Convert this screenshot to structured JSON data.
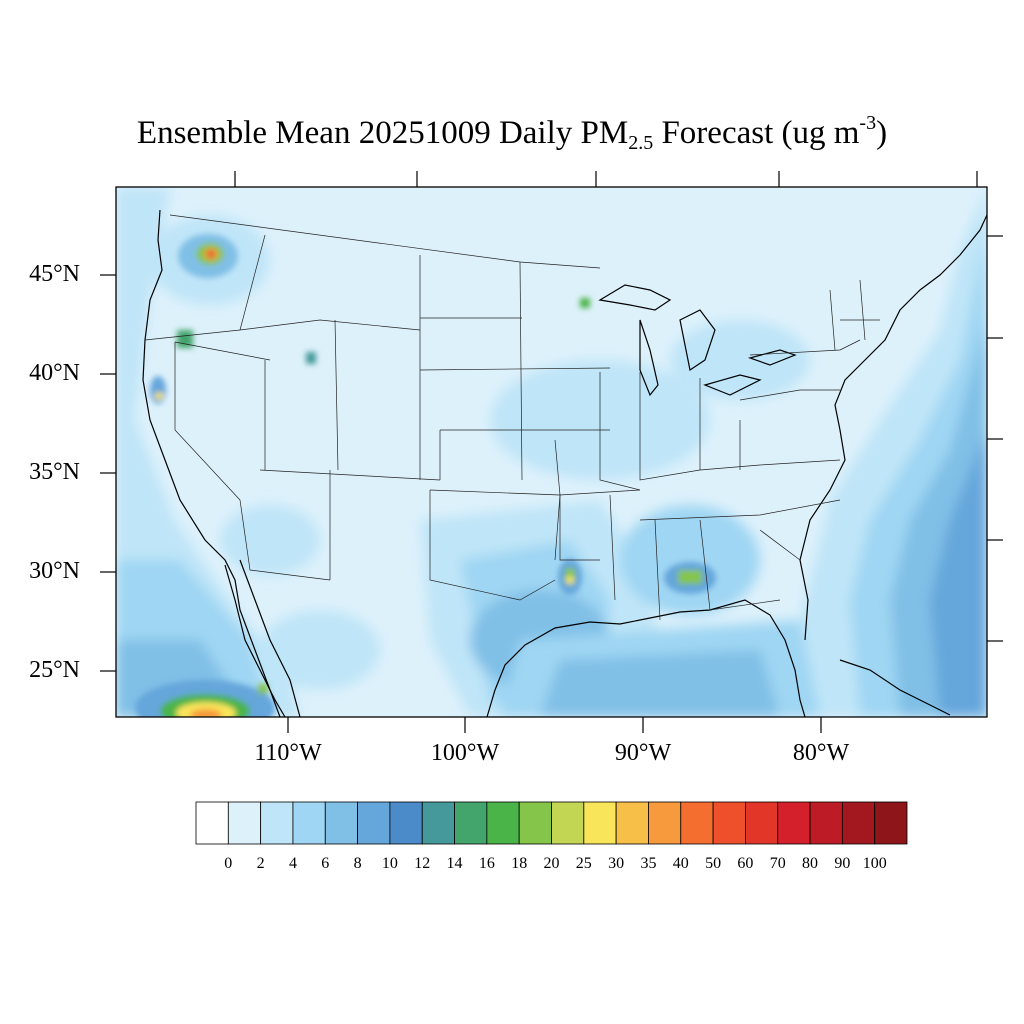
{
  "title": {
    "prefix": "Ensemble Mean 20251009 Daily PM",
    "subscript": "2.5",
    "middle": " Forecast (ug m",
    "superscript": "-3",
    "suffix": ")"
  },
  "lat_labels": [
    "45°N",
    "40°N",
    "35°N",
    "30°N",
    "25°N"
  ],
  "lon_labels": [
    "110°W",
    "100°W",
    "90°W",
    "80°W"
  ],
  "colorbar": {
    "labels": [
      "0",
      "2",
      "4",
      "6",
      "8",
      "10",
      "12",
      "14",
      "16",
      "18",
      "20",
      "25",
      "30",
      "35",
      "40",
      "50",
      "60",
      "70",
      "80",
      "90",
      "100"
    ],
    "colors": [
      "#ffffff",
      "#ddf1fb",
      "#bfe5f8",
      "#9fd6f3",
      "#80bfe6",
      "#65a6db",
      "#4b8bc9",
      "#45999a",
      "#43a46c",
      "#4bb449",
      "#85c54a",
      "#c3d654",
      "#f9e55a",
      "#f8bf48",
      "#f7993d",
      "#f46f2f",
      "#ee502b",
      "#e23628",
      "#d4202b",
      "#bd1c26",
      "#a3181f",
      "#8e1519"
    ]
  },
  "colors": {
    "background_field": "#ddf1fb",
    "border": "#000000"
  }
}
